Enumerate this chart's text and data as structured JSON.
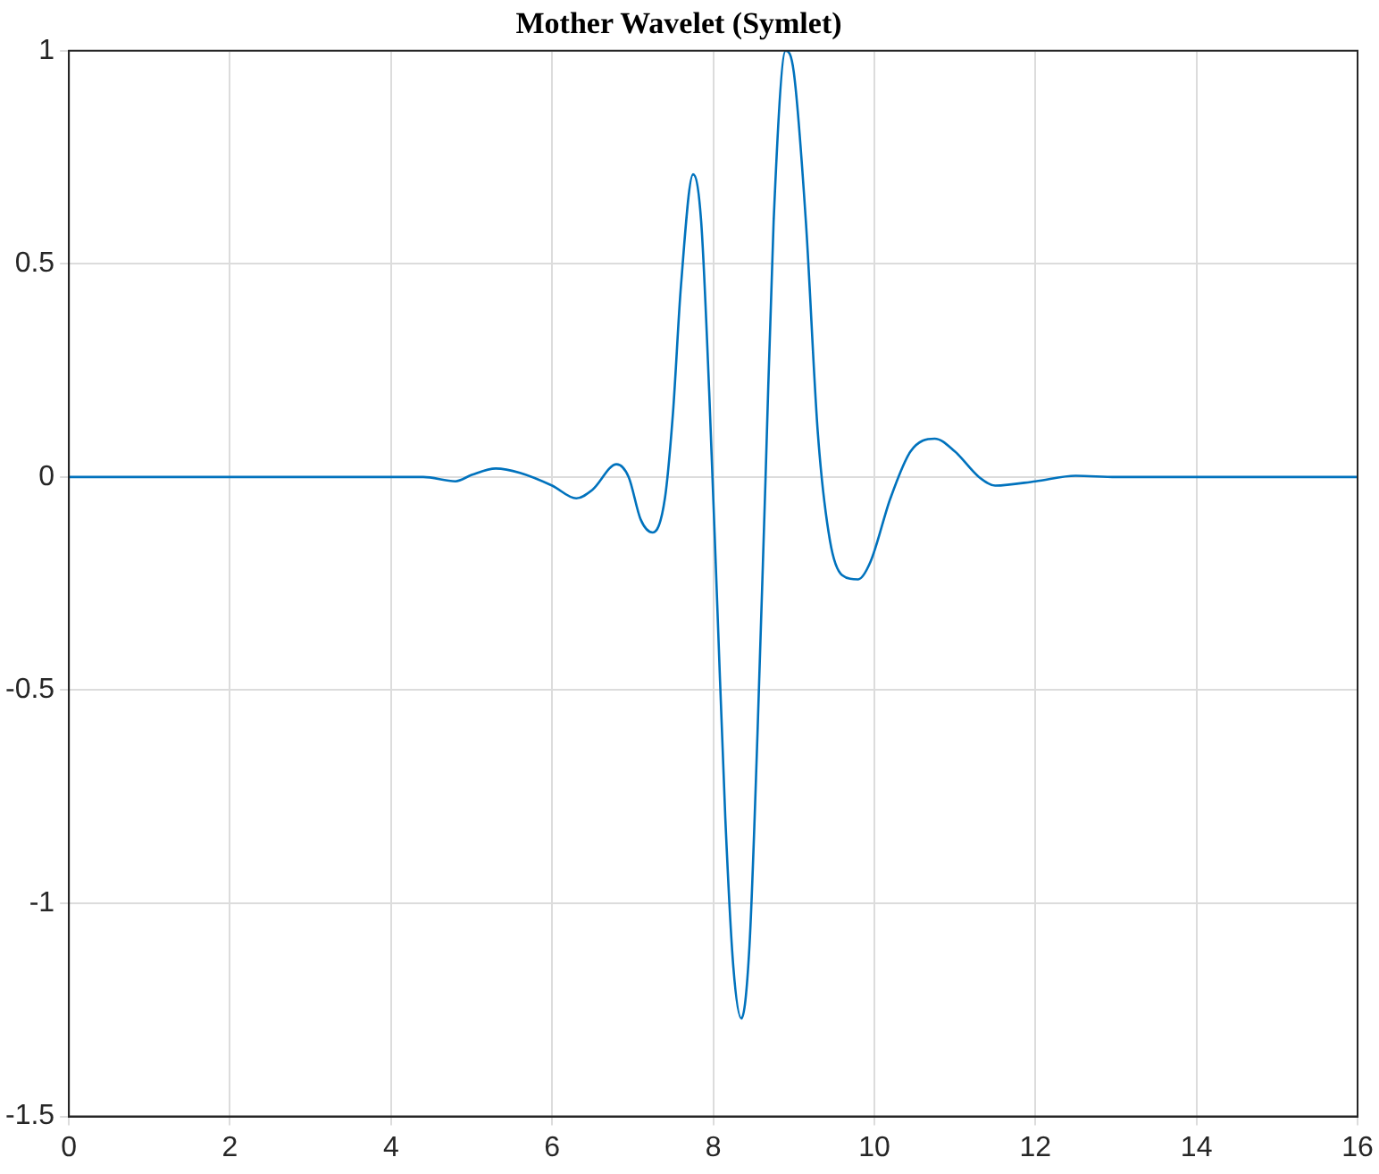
{
  "chart_data": {
    "type": "line",
    "title": "Mother Wavelet (Symlet)",
    "xlim": [
      0,
      16
    ],
    "xticks": [
      0,
      2,
      4,
      6,
      8,
      10,
      12,
      14,
      16
    ],
    "ylim": [
      -1.5,
      1
    ],
    "yticks": [
      -1.5,
      -1,
      -0.5,
      0,
      0.5,
      1
    ],
    "grid": true,
    "series": [
      {
        "color": "#0072bd",
        "x": [
          0,
          2,
          4,
          4.4,
          4.8,
          5.0,
          5.3,
          5.6,
          6.0,
          6.3,
          6.5,
          6.8,
          6.95,
          7.1,
          7.25,
          7.4,
          7.5,
          7.6,
          7.75,
          7.85,
          7.95,
          8.05,
          8.15,
          8.25,
          8.35,
          8.45,
          8.55,
          8.65,
          8.75,
          8.9,
          9.0,
          9.15,
          9.3,
          9.45,
          9.6,
          9.8,
          9.95,
          10.2,
          10.45,
          10.75,
          11.0,
          11.3,
          11.5,
          12.0,
          12.5,
          13,
          14,
          16
        ],
        "values": [
          0,
          0,
          0,
          0,
          -0.01,
          0.005,
          0.02,
          0.01,
          -0.02,
          -0.05,
          -0.03,
          0.03,
          0,
          -0.1,
          -0.13,
          -0.05,
          0.15,
          0.45,
          0.71,
          0.6,
          0.2,
          -0.3,
          -0.8,
          -1.15,
          -1.27,
          -1.1,
          -0.6,
          0,
          0.6,
          1,
          0.95,
          0.6,
          0.1,
          -0.15,
          -0.23,
          -0.24,
          -0.2,
          -0.05,
          0.06,
          0.09,
          0.06,
          0,
          -0.02,
          -0.01,
          0.003,
          0,
          0,
          0
        ]
      }
    ]
  }
}
